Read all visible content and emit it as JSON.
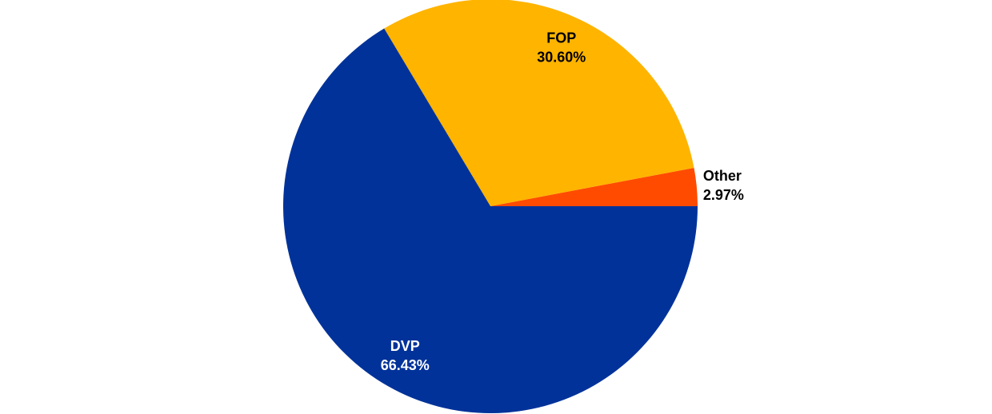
{
  "chart_data": {
    "type": "pie",
    "categories": [
      "Other",
      "FOP",
      "DVP"
    ],
    "values": [
      2.97,
      30.6,
      66.43
    ],
    "value_labels": [
      "2.97%",
      "30.60%",
      "66.43%"
    ],
    "colors": [
      "#ff4b00",
      "#ffb400",
      "#003299"
    ]
  }
}
